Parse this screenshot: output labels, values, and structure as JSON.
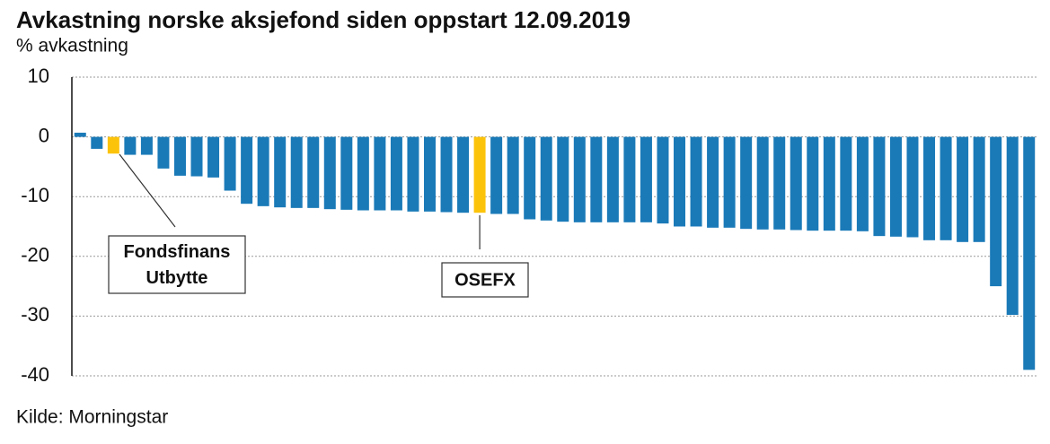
{
  "chart_data": {
    "type": "bar",
    "title": "Avkastning norske aksjefond siden oppstart 12.09.2019",
    "y_label": "% avkastning",
    "source": "Kilde: Morningstar",
    "categories": [
      null,
      null,
      null,
      null,
      null,
      null,
      null,
      null,
      null,
      null,
      null,
      null,
      null,
      null,
      null,
      null,
      null,
      null,
      null,
      null,
      null,
      null,
      null,
      null,
      null,
      null,
      null,
      null,
      null,
      null,
      null,
      null,
      null,
      null,
      null,
      null,
      null,
      null,
      null,
      null,
      null,
      null,
      null,
      null,
      null,
      null,
      null,
      null,
      null,
      null,
      null,
      null,
      null,
      null,
      null,
      null,
      null,
      null
    ],
    "values": [
      0.7,
      -2,
      -2.8,
      -3,
      -3,
      -5.3,
      -6.5,
      -6.6,
      -6.8,
      -9,
      -11.2,
      -11.6,
      -11.8,
      -11.9,
      -11.9,
      -12.1,
      -12.2,
      -12.3,
      -12.3,
      -12.3,
      -12.5,
      -12.5,
      -12.6,
      -12.7,
      -12.7,
      -12.9,
      -12.9,
      -13.8,
      -14,
      -14.2,
      -14.3,
      -14.3,
      -14.3,
      -14.3,
      -14.3,
      -14.5,
      -15,
      -15,
      -15.2,
      -15.2,
      -15.4,
      -15.5,
      -15.5,
      -15.6,
      -15.7,
      -15.7,
      -15.7,
      -15.8,
      -16.6,
      -16.7,
      -16.8,
      -17.3,
      -17.3,
      -17.6,
      -17.6,
      -25,
      -29.8,
      -39
    ],
    "colors": [
      "#1a7ab8",
      "#1a7ab8",
      "#fcc30b",
      "#1a7ab8",
      "#1a7ab8",
      "#1a7ab8",
      "#1a7ab8",
      "#1a7ab8",
      "#1a7ab8",
      "#1a7ab8",
      "#1a7ab8",
      "#1a7ab8",
      "#1a7ab8",
      "#1a7ab8",
      "#1a7ab8",
      "#1a7ab8",
      "#1a7ab8",
      "#1a7ab8",
      "#1a7ab8",
      "#1a7ab8",
      "#1a7ab8",
      "#1a7ab8",
      "#1a7ab8",
      "#1a7ab8",
      "#fcc30b",
      "#1a7ab8",
      "#1a7ab8",
      "#1a7ab8",
      "#1a7ab8",
      "#1a7ab8",
      "#1a7ab8",
      "#1a7ab8",
      "#1a7ab8",
      "#1a7ab8",
      "#1a7ab8",
      "#1a7ab8",
      "#1a7ab8",
      "#1a7ab8",
      "#1a7ab8",
      "#1a7ab8",
      "#1a7ab8",
      "#1a7ab8",
      "#1a7ab8",
      "#1a7ab8",
      "#1a7ab8",
      "#1a7ab8",
      "#1a7ab8",
      "#1a7ab8",
      "#1a7ab8",
      "#1a7ab8",
      "#1a7ab8",
      "#1a7ab8",
      "#1a7ab8",
      "#1a7ab8",
      "#1a7ab8",
      "#1a7ab8",
      "#1a7ab8",
      "#1a7ab8"
    ],
    "ylim": [
      -40,
      10
    ],
    "yticks": [
      10,
      0,
      -10,
      -20,
      -30,
      -40
    ],
    "grid": true,
    "annotations": [
      {
        "lines": [
          "Fondsfinans",
          "Utbytte"
        ]
      },
      {
        "lines": [
          "OSEFX"
        ]
      }
    ]
  }
}
